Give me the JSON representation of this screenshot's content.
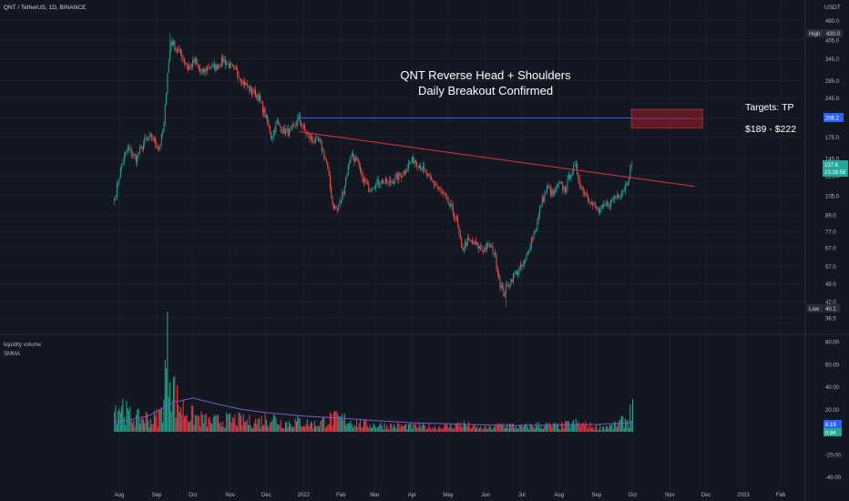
{
  "header": {
    "symbol_line": "QNT / TetherUS, 1D, BINANCE",
    "currency": "USDT"
  },
  "annotations": {
    "title_line1": "QNT Reverse Head + Shoulders",
    "title_line2": "Daily Breakout  Confirmed",
    "targets_label": "Targets: TP",
    "targets_range": "$189 - $222"
  },
  "price_badges": {
    "high_label": "High",
    "high_value": "430.0",
    "level_value": "206.2",
    "last_value": "137.6",
    "countdown": "23:28:58",
    "low_label": "Low",
    "low_value": "40.1"
  },
  "volume_panel": {
    "indicator_name": "liquidity volume",
    "ma_name": "SMMA",
    "badge_upper": "8.19",
    "badge_lower": "0.84"
  },
  "colors": {
    "background": "#131722",
    "up": "#26a69a",
    "down": "#ef5350",
    "vol_up": "#22ab94",
    "vol_down": "#f23645",
    "trendline_blue": "#2962ff",
    "trendline_red": "#e0313c",
    "target_zone": "#7a1c2a",
    "smma": "#7e57c2"
  },
  "chart_data": [
    {
      "type": "candlestick",
      "name": "price",
      "y_scale": "log",
      "y_ticks": [
        36.5,
        42.0,
        49.0,
        57.0,
        67.0,
        77.0,
        89.0,
        105.0,
        125.0,
        145.0,
        175.0,
        206.2,
        245.0,
        285.0,
        345.0,
        405.0,
        480.0
      ],
      "y_tick_labels": [
        "36.5",
        "42.0",
        "49.0",
        "57.0",
        "67.0",
        "77.0",
        "89.0",
        "105.0",
        "125.0",
        "145.0",
        "175.0",
        "206.2",
        "245.0",
        "285.0",
        "345.0",
        "405.0",
        "480.0"
      ],
      "x_labels": [
        "Aug",
        "Sep",
        "Oct",
        "Nov",
        "Dec",
        "2022",
        "Feb",
        "Mar",
        "Apr",
        "May",
        "Jun",
        "Jul",
        "Aug",
        "Sep",
        "Oct",
        "Nov",
        "Dec",
        "2023",
        "Feb"
      ],
      "x_label_dates": [
        "2021-08-01",
        "2021-09-01",
        "2021-10-01",
        "2021-11-01",
        "2021-12-01",
        "2022-01-01",
        "2022-02-01",
        "2022-03-01",
        "2022-04-01",
        "2022-05-01",
        "2022-06-01",
        "2022-07-01",
        "2022-08-01",
        "2022-09-01",
        "2022-10-01",
        "2022-11-01",
        "2022-12-01",
        "2023-01-01",
        "2023-02-01"
      ],
      "close_path": [
        [
          "2021-07-28",
          103
        ],
        [
          "2021-08-03",
          138
        ],
        [
          "2021-08-08",
          158
        ],
        [
          "2021-08-15",
          145
        ],
        [
          "2021-08-22",
          168
        ],
        [
          "2021-08-28",
          175
        ],
        [
          "2021-09-03",
          158
        ],
        [
          "2021-09-07",
          192
        ],
        [
          "2021-09-10",
          310
        ],
        [
          "2021-09-13",
          402
        ],
        [
          "2021-09-17",
          378
        ],
        [
          "2021-09-22",
          355
        ],
        [
          "2021-09-27",
          318
        ],
        [
          "2021-10-03",
          338
        ],
        [
          "2021-10-08",
          302
        ],
        [
          "2021-10-14",
          322
        ],
        [
          "2021-10-20",
          320
        ],
        [
          "2021-10-26",
          342
        ],
        [
          "2021-11-01",
          322
        ],
        [
          "2021-11-07",
          305
        ],
        [
          "2021-11-12",
          282
        ],
        [
          "2021-11-18",
          262
        ],
        [
          "2021-11-24",
          250
        ],
        [
          "2021-11-30",
          212
        ],
        [
          "2021-12-05",
          176
        ],
        [
          "2021-12-10",
          198
        ],
        [
          "2021-12-14",
          186
        ],
        [
          "2021-12-20",
          182
        ],
        [
          "2021-12-24",
          190
        ],
        [
          "2021-12-28",
          206
        ],
        [
          "2022-01-02",
          183
        ],
        [
          "2022-01-08",
          170
        ],
        [
          "2022-01-14",
          168
        ],
        [
          "2022-01-20",
          140
        ],
        [
          "2022-01-25",
          98
        ],
        [
          "2022-01-29",
          92
        ],
        [
          "2022-02-03",
          110
        ],
        [
          "2022-02-09",
          151
        ],
        [
          "2022-02-14",
          142
        ],
        [
          "2022-02-18",
          124
        ],
        [
          "2022-02-24",
          112
        ],
        [
          "2022-03-01",
          116
        ],
        [
          "2022-03-06",
          120
        ],
        [
          "2022-03-12",
          117
        ],
        [
          "2022-03-18",
          122
        ],
        [
          "2022-03-24",
          127
        ],
        [
          "2022-03-30",
          140
        ],
        [
          "2022-04-03",
          144
        ],
        [
          "2022-04-09",
          134
        ],
        [
          "2022-04-15",
          122
        ],
        [
          "2022-04-21",
          115
        ],
        [
          "2022-04-27",
          105
        ],
        [
          "2022-05-03",
          95
        ],
        [
          "2022-05-08",
          85
        ],
        [
          "2022-05-12",
          66
        ],
        [
          "2022-05-17",
          71
        ],
        [
          "2022-05-23",
          69
        ],
        [
          "2022-05-29",
          66
        ],
        [
          "2022-06-04",
          68
        ],
        [
          "2022-06-08",
          65
        ],
        [
          "2022-06-13",
          49
        ],
        [
          "2022-06-16",
          45
        ],
        [
          "2022-06-20",
          49
        ],
        [
          "2022-06-25",
          53
        ],
        [
          "2022-06-30",
          56
        ],
        [
          "2022-07-04",
          60
        ],
        [
          "2022-07-09",
          72
        ],
        [
          "2022-07-13",
          80
        ],
        [
          "2022-07-17",
          98
        ],
        [
          "2022-07-22",
          112
        ],
        [
          "2022-07-27",
          106
        ],
        [
          "2022-08-01",
          116
        ],
        [
          "2022-08-06",
          111
        ],
        [
          "2022-08-11",
          130
        ],
        [
          "2022-08-15",
          134
        ],
        [
          "2022-08-19",
          114
        ],
        [
          "2022-08-24",
          106
        ],
        [
          "2022-08-29",
          97
        ],
        [
          "2022-09-03",
          92
        ],
        [
          "2022-09-08",
          95
        ],
        [
          "2022-09-13",
          100
        ],
        [
          "2022-09-17",
          105
        ],
        [
          "2022-09-21",
          108
        ],
        [
          "2022-09-25",
          114
        ],
        [
          "2022-09-28",
          126
        ],
        [
          "2022-10-01",
          137.6
        ]
      ],
      "high": {
        "date": "2021-09-12",
        "value": 430.0
      },
      "low": {
        "date": "2022-06-18",
        "value": 40.1
      },
      "last_close": 137.6,
      "horizontal_line": {
        "value": 206.2,
        "from": "2021-12-28",
        "to": "2022-11-21",
        "color": "blue"
      },
      "trendline": {
        "from_date": "2021-12-28",
        "from_value": 183,
        "to_date": "2022-11-21",
        "to_value": 114,
        "color": "red"
      },
      "target_zone": {
        "from_date": "2022-09-30",
        "to_date": "2022-11-28",
        "low": 189,
        "high": 222
      }
    },
    {
      "type": "bar",
      "name": "liquidity volume",
      "y_ticks": [
        -40,
        -20,
        0,
        20,
        40,
        60,
        80
      ],
      "y_tick_labels": [
        "-40.00",
        "-20.00",
        "0.00",
        "20.00",
        "40.00",
        "60.00",
        "80.00"
      ],
      "ylim": [
        -40,
        85
      ],
      "volume_profile": [
        [
          "2021-07-28",
          24
        ],
        [
          "2021-08-03",
          30
        ],
        [
          "2021-08-08",
          18
        ],
        [
          "2021-08-15",
          14
        ],
        [
          "2021-08-22",
          16
        ],
        [
          "2021-08-28",
          12
        ],
        [
          "2021-09-05",
          20
        ],
        [
          "2021-09-10",
          82
        ],
        [
          "2021-09-13",
          65
        ],
        [
          "2021-09-17",
          34
        ],
        [
          "2021-09-22",
          26
        ],
        [
          "2021-09-28",
          18
        ],
        [
          "2021-10-05",
          15
        ],
        [
          "2021-10-15",
          11
        ],
        [
          "2021-10-25",
          12
        ],
        [
          "2021-11-05",
          13
        ],
        [
          "2021-11-15",
          11
        ],
        [
          "2021-11-25",
          11
        ],
        [
          "2021-12-05",
          16
        ],
        [
          "2021-12-15",
          9
        ],
        [
          "2021-12-28",
          11
        ],
        [
          "2022-01-10",
          8
        ],
        [
          "2022-01-24",
          14
        ],
        [
          "2022-02-05",
          13
        ],
        [
          "2022-02-20",
          8
        ],
        [
          "2022-03-05",
          7
        ],
        [
          "2022-03-20",
          6
        ],
        [
          "2022-04-05",
          6
        ],
        [
          "2022-04-20",
          5
        ],
        [
          "2022-05-05",
          6
        ],
        [
          "2022-05-12",
          9
        ],
        [
          "2022-05-25",
          4
        ],
        [
          "2022-06-05",
          4
        ],
        [
          "2022-06-15",
          8
        ],
        [
          "2022-06-30",
          5
        ],
        [
          "2022-07-15",
          7
        ],
        [
          "2022-08-01",
          6
        ],
        [
          "2022-08-15",
          9
        ],
        [
          "2022-09-01",
          5
        ],
        [
          "2022-09-15",
          6
        ],
        [
          "2022-09-28",
          14
        ],
        [
          "2022-10-01",
          29
        ]
      ],
      "smma_profile": [
        [
          "2021-07-28",
          8
        ],
        [
          "2021-08-25",
          14
        ],
        [
          "2021-09-15",
          26
        ],
        [
          "2021-10-01",
          30
        ],
        [
          "2021-10-20",
          25
        ],
        [
          "2021-11-10",
          20
        ],
        [
          "2021-12-01",
          17
        ],
        [
          "2022-01-01",
          14
        ],
        [
          "2022-02-01",
          12
        ],
        [
          "2022-03-01",
          10
        ],
        [
          "2022-04-01",
          8
        ],
        [
          "2022-05-01",
          7
        ],
        [
          "2022-05-20",
          6.5
        ],
        [
          "2022-06-20",
          5.5
        ],
        [
          "2022-08-01",
          6
        ],
        [
          "2022-09-01",
          6.5
        ],
        [
          "2022-10-01",
          8.19
        ]
      ],
      "last_smma": 8.19,
      "last_value": 0.84
    }
  ]
}
